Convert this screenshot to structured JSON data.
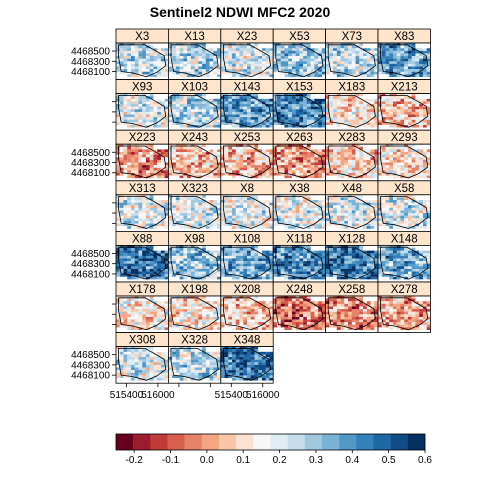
{
  "chart_data": {
    "type": "heatmap",
    "title": "Sentinel2 NDWI MFC2 2020",
    "xlabel": "",
    "ylabel": "",
    "layout": {
      "columns": 6,
      "rows": 7
    },
    "panels": [
      {
        "name": "X3",
        "mean": 0.25
      },
      {
        "name": "X13",
        "mean": 0.25
      },
      {
        "name": "X23",
        "mean": 0.22
      },
      {
        "name": "X53",
        "mean": 0.3
      },
      {
        "name": "X73",
        "mean": 0.25
      },
      {
        "name": "X83",
        "mean": 0.38
      },
      {
        "name": "X93",
        "mean": 0.2
      },
      {
        "name": "X103",
        "mean": 0.25
      },
      {
        "name": "X143",
        "mean": 0.38
      },
      {
        "name": "X153",
        "mean": 0.42
      },
      {
        "name": "X183",
        "mean": 0.12
      },
      {
        "name": "X213",
        "mean": 0.05
      },
      {
        "name": "X223",
        "mean": 0.0
      },
      {
        "name": "X243",
        "mean": 0.05
      },
      {
        "name": "X253",
        "mean": 0.05
      },
      {
        "name": "X263",
        "mean": 0.0
      },
      {
        "name": "X283",
        "mean": 0.08
      },
      {
        "name": "X293",
        "mean": 0.12
      },
      {
        "name": "X313",
        "mean": 0.2
      },
      {
        "name": "X323",
        "mean": 0.22
      },
      {
        "name": "X8",
        "mean": 0.18
      },
      {
        "name": "X38",
        "mean": 0.18
      },
      {
        "name": "X48",
        "mean": 0.22
      },
      {
        "name": "X58",
        "mean": 0.22
      },
      {
        "name": "X88",
        "mean": 0.45
      },
      {
        "name": "X98",
        "mean": 0.3
      },
      {
        "name": "X108",
        "mean": 0.35
      },
      {
        "name": "X118",
        "mean": 0.42
      },
      {
        "name": "X128",
        "mean": 0.45
      },
      {
        "name": "X148",
        "mean": 0.35
      },
      {
        "name": "X178",
        "mean": 0.12
      },
      {
        "name": "X198",
        "mean": 0.12
      },
      {
        "name": "X208",
        "mean": 0.05
      },
      {
        "name": "X248",
        "mean": -0.05
      },
      {
        "name": "X258",
        "mean": -0.02
      },
      {
        "name": "X278",
        "mean": 0.02
      },
      {
        "name": "X308",
        "mean": 0.2
      },
      {
        "name": "X328",
        "mean": 0.25
      },
      {
        "name": "X348",
        "mean": 0.45
      }
    ],
    "y_ticks": [
      "4468500",
      "4468300",
      "4468100"
    ],
    "x_ticks": [
      "515400",
      "516000"
    ],
    "colorbar": {
      "ticks": [
        "-0.2",
        "-0.1",
        "0.0",
        "0.1",
        "0.2",
        "0.3",
        "0.4",
        "0.5",
        "0.6"
      ],
      "range": [
        -0.25,
        0.6
      ],
      "colors": [
        "#67001f",
        "#9e1a2e",
        "#c23b3b",
        "#d6604d",
        "#e58368",
        "#f4a582",
        "#f8c6a8",
        "#fbe3d4",
        "#f7f7f7",
        "#e0ecf4",
        "#c4dcec",
        "#a0c9e1",
        "#7bb2d5",
        "#5198c7",
        "#3480b9",
        "#1f67a4",
        "#124c87",
        "#053061"
      ]
    }
  }
}
